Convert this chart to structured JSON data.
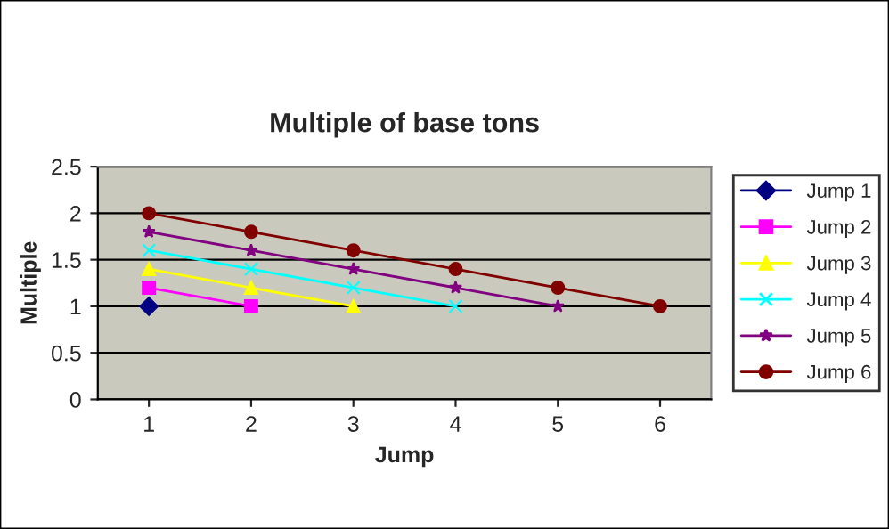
{
  "chart_data": {
    "type": "line",
    "title": "Multiple of base tons",
    "xlabel": "Jump",
    "ylabel": "Multiple",
    "categories": [
      "1",
      "2",
      "3",
      "4",
      "5",
      "6"
    ],
    "series": [
      {
        "name": "Jump 1",
        "color": "#000080",
        "marker": "diamond",
        "values": [
          1,
          null,
          null,
          null,
          null,
          null
        ]
      },
      {
        "name": "Jump 2",
        "color": "#ff00ff",
        "marker": "square",
        "values": [
          1.2,
          1,
          null,
          null,
          null,
          null
        ]
      },
      {
        "name": "Jump 3",
        "color": "#ffff00",
        "marker": "triangle",
        "values": [
          1.4,
          1.2,
          1,
          null,
          null,
          null
        ]
      },
      {
        "name": "Jump 4",
        "color": "#00ffff",
        "marker": "cross",
        "values": [
          1.6,
          1.4,
          1.2,
          1,
          null,
          null
        ]
      },
      {
        "name": "Jump 5",
        "color": "#800080",
        "marker": "star",
        "values": [
          1.8,
          1.6,
          1.4,
          1.2,
          1,
          null
        ]
      },
      {
        "name": "Jump 6",
        "color": "#800000",
        "marker": "circle",
        "values": [
          2,
          1.8,
          1.6,
          1.4,
          1.2,
          1
        ]
      }
    ],
    "ylim": [
      0,
      2.5
    ],
    "yticks": [
      0,
      0.5,
      1,
      1.5,
      2,
      2.5
    ],
    "grid": "y",
    "legend": "right",
    "line_style": "solid"
  }
}
